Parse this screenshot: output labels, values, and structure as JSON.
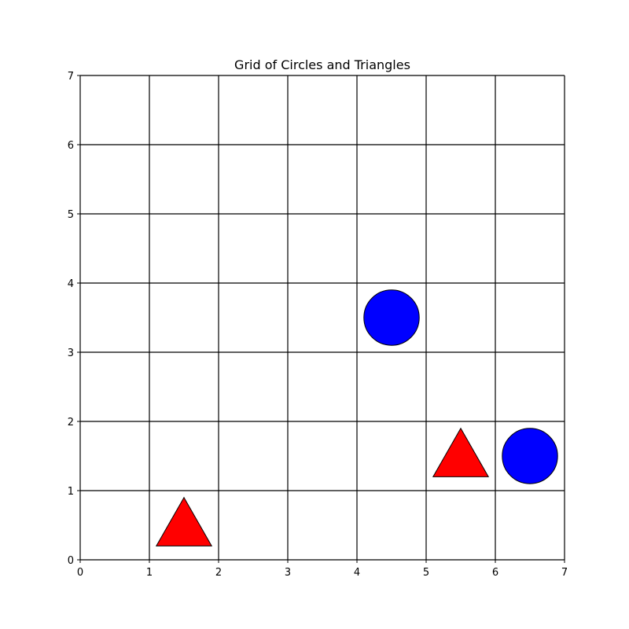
{
  "chart_data": {
    "type": "scatter",
    "title": "Grid of Circles and Triangles",
    "xlabel": "",
    "ylabel": "",
    "xlim": [
      0,
      7
    ],
    "ylim": [
      0,
      7
    ],
    "xticks": [
      "0",
      "1",
      "2",
      "3",
      "4",
      "5",
      "6",
      "7"
    ],
    "yticks": [
      "0",
      "1",
      "2",
      "3",
      "4",
      "5",
      "6",
      "7"
    ],
    "grid": true,
    "legend": "none",
    "series": [
      {
        "marker": "circle",
        "color": "#0000ff",
        "points": [
          {
            "x": 4.5,
            "y": 3.5
          },
          {
            "x": 6.5,
            "y": 1.5
          }
        ]
      },
      {
        "marker": "triangle",
        "color": "#ff0000",
        "points": [
          {
            "x": 1.5,
            "y": 0.5
          },
          {
            "x": 5.5,
            "y": 1.5
          }
        ]
      }
    ]
  }
}
